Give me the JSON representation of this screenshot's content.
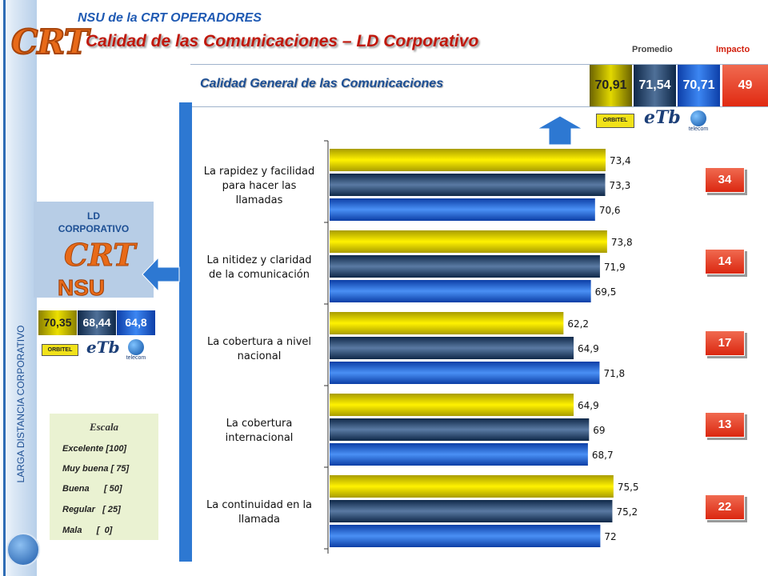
{
  "header": {
    "logo_text": "CRT",
    "subtitle": "NSU de la CRT  OPERADORES",
    "title": "Calidad de las Comunicaciones – LD Corporativo"
  },
  "columns": {
    "promedio": "Promedio",
    "impacto": "Impacto"
  },
  "general": {
    "label": "Calidad General de las Comunicaciones",
    "values": [
      "70,91",
      "71,54",
      "70,71"
    ],
    "impact": "49"
  },
  "operators": [
    {
      "name": "ORBITEL",
      "logo": "orbitel-logo"
    },
    {
      "name": "eTb",
      "logo": "etb-logo"
    },
    {
      "name": "telecom",
      "logo": "telecom-logo"
    }
  ],
  "ld_panel": {
    "label_line1": "LD",
    "label_line2": "CORPORATIVO",
    "logo_crt": "CRT",
    "logo_nsu": "NSU",
    "values": [
      "70,35",
      "68,44",
      "64,8"
    ]
  },
  "side_label": "LARGA DISTANCIA CORPORATIVO",
  "escala": {
    "title": "Escala",
    "items": [
      "Excelente [100]",
      "Muy buena  [ 75]",
      "Buena      [ 50]",
      "Regular   [ 25]",
      "Mala      [  0]"
    ]
  },
  "colors": {
    "orbitel": "#e2d800",
    "etb": "#24466f",
    "telecom": "#2d78e8",
    "impact": "#e02a12",
    "title": "#c0180c"
  },
  "chart_data": {
    "type": "bar",
    "orientation": "horizontal",
    "categories": [
      [
        "La rapidez y facilidad",
        "para hacer las",
        "llamadas"
      ],
      [
        "La nitidez y claridad",
        "de la comunicación"
      ],
      [
        "La cobertura a nivel",
        "nacional"
      ],
      [
        "La cobertura",
        "internacional"
      ],
      [
        "La continuidad en la",
        "llamada"
      ]
    ],
    "series": [
      {
        "name": "ORBITEL",
        "values": [
          73.4,
          73.8,
          62.2,
          64.9,
          75.5
        ],
        "labels": [
          "73,4",
          "73,8",
          "62,2",
          "64,9",
          "75,5"
        ]
      },
      {
        "name": "eTb",
        "values": [
          73.3,
          71.9,
          64.9,
          69,
          75.2
        ],
        "labels": [
          "73,3",
          "71,9",
          "64,9",
          "69",
          "75,2"
        ]
      },
      {
        "name": "telecom",
        "values": [
          70.6,
          69.5,
          71.8,
          68.7,
          72
        ],
        "labels": [
          "70,6",
          "69,5",
          "71,8",
          "68,7",
          "72"
        ]
      }
    ],
    "impact": [
      "34",
      "14",
      "17",
      "13",
      "22"
    ],
    "grid": false
  }
}
